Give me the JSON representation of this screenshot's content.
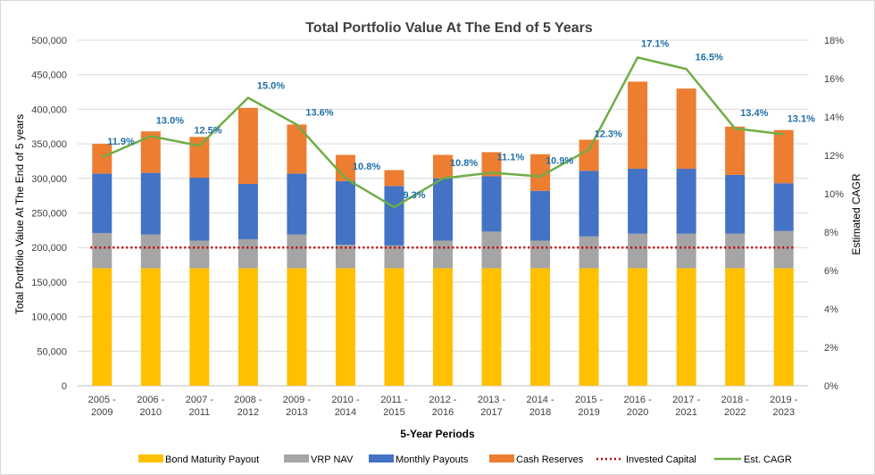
{
  "chart_data": {
    "type": "bar",
    "subtype": "stacked-bar-with-line",
    "title": "Total Portfolio Value At The End of 5 Years",
    "xlabel": "5-Year Periods",
    "ylabel": "Total Portfolio Value At The End of 5 years",
    "y2label": "Estimated CAGR",
    "ylim": [
      0,
      500000
    ],
    "y2lim": [
      0,
      18
    ],
    "yticks": [
      "0",
      "50,000",
      "100,000",
      "150,000",
      "200,000",
      "250,000",
      "300,000",
      "350,000",
      "400,000",
      "450,000",
      "500,000"
    ],
    "y2ticks": [
      "0%",
      "2%",
      "4%",
      "6%",
      "8%",
      "10%",
      "12%",
      "14%",
      "16%",
      "18%"
    ],
    "categories": [
      [
        "2005 -",
        "2009"
      ],
      [
        "2006 -",
        "2010"
      ],
      [
        "2007 -",
        "2011"
      ],
      [
        "2008 -",
        "2012"
      ],
      [
        "2009 -",
        "2013"
      ],
      [
        "2010 -",
        "2014"
      ],
      [
        "2011 -",
        "2015"
      ],
      [
        "2012 -",
        "2016"
      ],
      [
        "2013 -",
        "2017"
      ],
      [
        "2014 -",
        "2018"
      ],
      [
        "2015 -",
        "2019"
      ],
      [
        "2016 -",
        "2020"
      ],
      [
        "2017 -",
        "2021"
      ],
      [
        "2018 -",
        "2022"
      ],
      [
        "2019 -",
        "2023"
      ]
    ],
    "series": [
      {
        "name": "Bond Maturity Payout",
        "color": "#ffc000",
        "values": [
          170000,
          170000,
          170000,
          170000,
          170000,
          170000,
          170000,
          170000,
          170000,
          170000,
          170000,
          170000,
          170000,
          170000,
          170000
        ]
      },
      {
        "name": "VRP NAV",
        "color": "#a5a5a5",
        "values": [
          51000,
          49000,
          40000,
          42000,
          49000,
          34000,
          33000,
          40000,
          53000,
          40000,
          46000,
          50000,
          50000,
          50000,
          54000
        ]
      },
      {
        "name": "Monthly Payouts",
        "color": "#4472c4",
        "values": [
          86000,
          89000,
          91000,
          80000,
          88000,
          92000,
          86000,
          90000,
          80000,
          72000,
          95000,
          94000,
          94000,
          85000,
          69000
        ]
      },
      {
        "name": "Cash Reserves",
        "color": "#ed7d31",
        "values": [
          43000,
          60000,
          59000,
          110000,
          71000,
          38000,
          23000,
          34000,
          35000,
          53000,
          45000,
          126000,
          116000,
          70000,
          77000
        ]
      }
    ],
    "invested_capital": {
      "name": "Invested Capital",
      "color": "#c00000",
      "value": 200000
    },
    "cagr": {
      "name": "Est. CAGR",
      "color": "#70ad47",
      "values": [
        11.9,
        13.0,
        12.5,
        15.0,
        13.6,
        10.8,
        9.3,
        10.8,
        11.1,
        10.9,
        12.3,
        17.1,
        16.5,
        13.4,
        13.1
      ],
      "labels": [
        "11.9%",
        "13.0%",
        "12.5%",
        "15.0%",
        "13.6%",
        "10.8%",
        "9.3%",
        "10.8%",
        "11.1%",
        "10.9%",
        "12.3%",
        "17.1%",
        "16.5%",
        "13.4%",
        "13.1%"
      ]
    },
    "legend": [
      "Bond Maturity Payout",
      "VRP NAV",
      "Monthly Payouts",
      "Cash Reserves",
      "Invested Capital",
      "Est. CAGR"
    ]
  }
}
